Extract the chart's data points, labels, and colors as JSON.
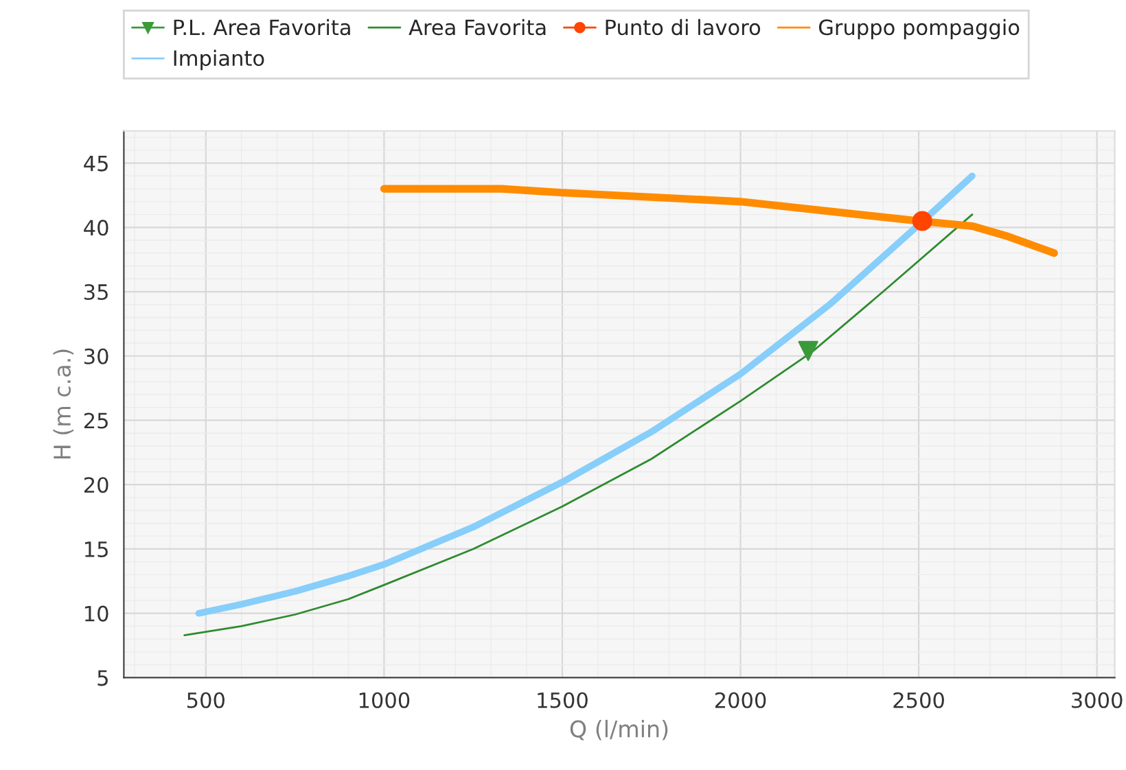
{
  "chart_data": {
    "type": "line",
    "xlabel": "Q (l/min)",
    "ylabel": "H (m c.a.)",
    "xlim": [
      270,
      3050
    ],
    "ylim": [
      5,
      47.5
    ],
    "xticks": [
      500,
      1000,
      1500,
      2000,
      2500,
      3000
    ],
    "yticks": [
      5,
      10,
      15,
      20,
      25,
      30,
      35,
      40,
      45
    ],
    "grid": true,
    "legend": "top",
    "series": [
      {
        "name": "P.L. Area Favorita",
        "type": "scatter",
        "marker": "triangle",
        "color": "#3a9a3a",
        "x": [
          2190
        ],
        "values": [
          30.4
        ]
      },
      {
        "name": "Area Favorita",
        "color": "#2e8b2e",
        "x": [
          440,
          600,
          750,
          900,
          1000,
          1250,
          1500,
          1750,
          2000,
          2200,
          2400,
          2650
        ],
        "values": [
          8.3,
          9,
          9.9,
          11.1,
          12.2,
          15,
          18.3,
          22,
          26.5,
          30.3,
          35,
          41
        ]
      },
      {
        "name": "Punto di lavoro",
        "type": "scatter",
        "marker": "circle",
        "color": "#ff4500",
        "x": [
          2510
        ],
        "values": [
          40.5
        ]
      },
      {
        "name": "Gruppo pompaggio",
        "color": "#ff8c00",
        "x": [
          1000,
          1330,
          1500,
          2000,
          2500,
          2650,
          2750,
          2880
        ],
        "values": [
          43,
          43,
          42.7,
          42,
          40.5,
          40.1,
          39.3,
          38
        ]
      },
      {
        "name": "Impianto",
        "color": "#87cefa",
        "x": [
          480,
          600,
          750,
          900,
          1000,
          1250,
          1500,
          1750,
          2000,
          2250,
          2500,
          2650
        ],
        "values": [
          10,
          10.7,
          11.7,
          12.9,
          13.8,
          16.7,
          20.2,
          24.1,
          28.6,
          34,
          40.2,
          44
        ]
      }
    ]
  }
}
